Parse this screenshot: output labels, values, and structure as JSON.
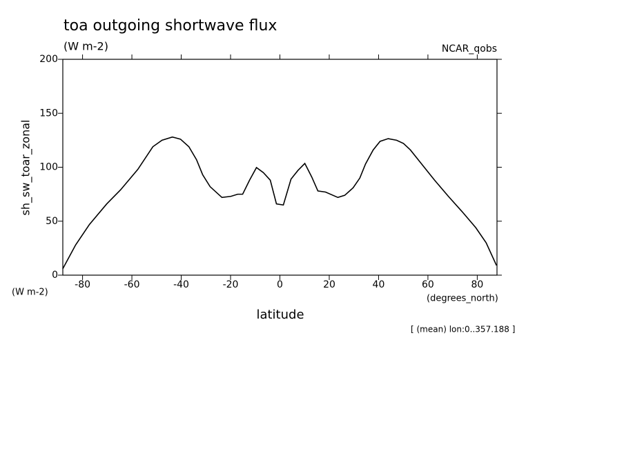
{
  "chart_data": {
    "type": "line",
    "title": "toa outgoing shortwave flux",
    "subtitle": "(W m-2)",
    "dataset": "NCAR_qobs",
    "y_label": "sh_sw_toar_zonal",
    "y_units": "(W m-2)",
    "x_label": "latitude",
    "x_units": "(degrees_north)",
    "note": "[ (mean) lon:0..357.188 ]",
    "x": [
      -88,
      -82.8,
      -77.2,
      -70.2,
      -64.6,
      -57.6,
      -51.5,
      -47.8,
      -43.6,
      -40.3,
      -36.9,
      -33.8,
      -31.3,
      -28.3,
      -23.5,
      -19.9,
      -17.1,
      -15.1,
      -12.3,
      -9.5,
      -6.7,
      -3.9,
      -1.4,
      1.4,
      4.5,
      7.3,
      10.1,
      12.9,
      15.4,
      18.5,
      23.5,
      26.3,
      29.7,
      32.4,
      34.7,
      37.8,
      40.6,
      43.9,
      47.3,
      50.1,
      52.9,
      57.1,
      62.7,
      68.3,
      73.8,
      79.4,
      83.6,
      87.8
    ],
    "series": [
      {
        "name": "sh_sw_toar_zonal",
        "color": "#000000",
        "values": [
          6,
          28,
          47,
          66,
          79,
          98,
          119,
          125,
          128,
          126,
          119,
          107,
          93,
          82,
          72,
          73,
          75,
          75,
          88,
          99.7,
          95,
          88,
          66,
          65,
          89,
          97,
          103.5,
          91,
          78,
          77,
          72,
          74,
          81,
          90,
          103,
          116,
          124,
          126.5,
          125,
          122,
          116,
          104,
          88,
          73,
          59,
          44,
          30,
          9
        ]
      }
    ],
    "xlim": [
      -88,
      88
    ],
    "ylim": [
      0,
      200
    ],
    "xticks": [
      -80,
      -60,
      -40,
      -20,
      0,
      20,
      40,
      60,
      80
    ],
    "yticks": [
      0,
      50,
      100,
      150,
      200
    ]
  }
}
